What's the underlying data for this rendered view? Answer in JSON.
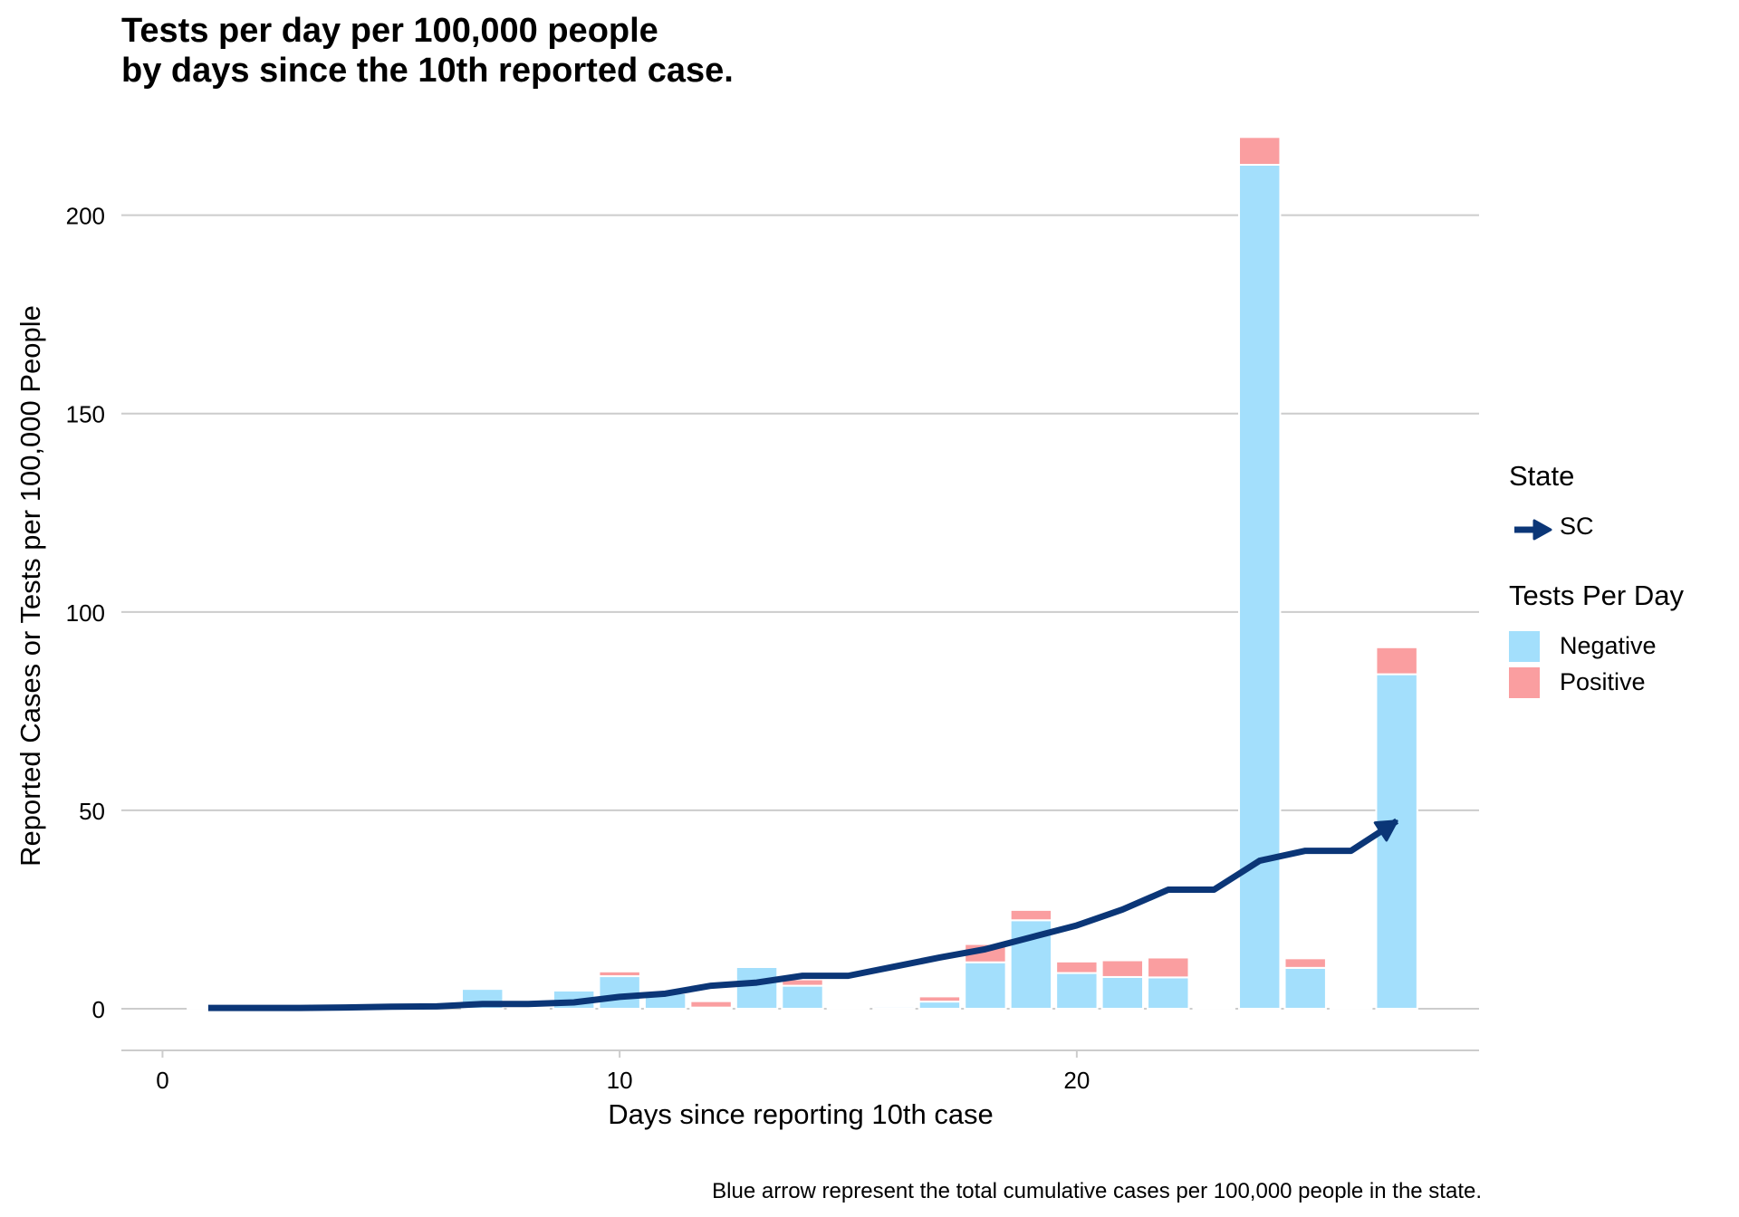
{
  "title": {
    "line1": "Tests per day per 100,000 people",
    "line2": "by days since the 10th reported case."
  },
  "caption": "Blue arrow represent the total cumulative cases per 100,000 people in the state.",
  "colors": {
    "negative": "#a3dffc",
    "positive": "#fa9ea0",
    "line": "#0b3677",
    "grid": "#cccccc"
  },
  "legend": {
    "state_title": "State",
    "state_label": "SC",
    "tests_title": "Tests Per Day",
    "negative_label": "Negative",
    "positive_label": "Positive"
  },
  "chart_data": {
    "type": "bar",
    "title": "Tests per day per 100,000 people by days since the 10th reported case.",
    "xlabel": "Days since reporting 10th case",
    "ylabel": "Reported Cases or Tests per 100,000 People",
    "xlim": [
      -0.9,
      28.8
    ],
    "ylim": [
      -10.5,
      220
    ],
    "x_ticks": [
      0,
      10,
      20
    ],
    "y_ticks": [
      0,
      50,
      100,
      150,
      200
    ],
    "grid": "horizontal",
    "legend_position": "right",
    "bars": [
      {
        "day": 1,
        "negative": 0.2,
        "positive": 0.1
      },
      {
        "day": 7,
        "negative": 5.0,
        "positive": 0.2
      },
      {
        "day": 8,
        "negative": 0.3,
        "positive": 0.1
      },
      {
        "day": 9,
        "negative": 4.6,
        "positive": 0.2
      },
      {
        "day": 10,
        "negative": 8.2,
        "positive": 1.2
      },
      {
        "day": 11,
        "negative": 3.9,
        "positive": 0.3
      },
      {
        "day": 12,
        "negative": 0.3,
        "positive": 1.6
      },
      {
        "day": 13,
        "negative": 10.5,
        "positive": 0.3
      },
      {
        "day": 14,
        "negative": 5.8,
        "positive": 1.6
      },
      {
        "day": 15,
        "negative": 0.2,
        "positive": 0.1
      },
      {
        "day": 16,
        "negative": 0.5,
        "positive": 0.1
      },
      {
        "day": 17,
        "negative": 1.8,
        "positive": 1.3
      },
      {
        "day": 18,
        "negative": 11.7,
        "positive": 4.6
      },
      {
        "day": 19,
        "negative": 22.3,
        "positive": 2.6
      },
      {
        "day": 20,
        "negative": 9.0,
        "positive": 2.9
      },
      {
        "day": 21,
        "negative": 8.0,
        "positive": 4.2
      },
      {
        "day": 22,
        "negative": 7.9,
        "positive": 5.0
      },
      {
        "day": 23,
        "negative": 0.2,
        "positive": 0.1
      },
      {
        "day": 24,
        "negative": 212.7,
        "positive": 7.0
      },
      {
        "day": 25,
        "negative": 10.3,
        "positive": 2.4
      },
      {
        "day": 26,
        "negative": 0.3,
        "positive": 0.1
      },
      {
        "day": 27,
        "negative": 84.3,
        "positive": 6.8
      }
    ],
    "series": [
      {
        "name": "SC",
        "type": "line-arrow",
        "x": [
          1,
          2,
          3,
          4,
          5,
          6,
          7,
          8,
          9,
          10,
          11,
          12,
          13,
          14,
          15,
          16,
          17,
          18,
          19,
          20,
          21,
          22,
          23,
          24,
          25,
          26,
          27
        ],
        "y": [
          0.2,
          0.2,
          0.2,
          0.3,
          0.5,
          0.6,
          1.2,
          1.2,
          1.6,
          3.0,
          3.8,
          5.8,
          6.6,
          8.3,
          8.3,
          10.6,
          12.9,
          15.0,
          18.0,
          21.0,
          25.0,
          30.0,
          30.0,
          37.3,
          39.8,
          39.8,
          47.3
        ]
      }
    ]
  }
}
